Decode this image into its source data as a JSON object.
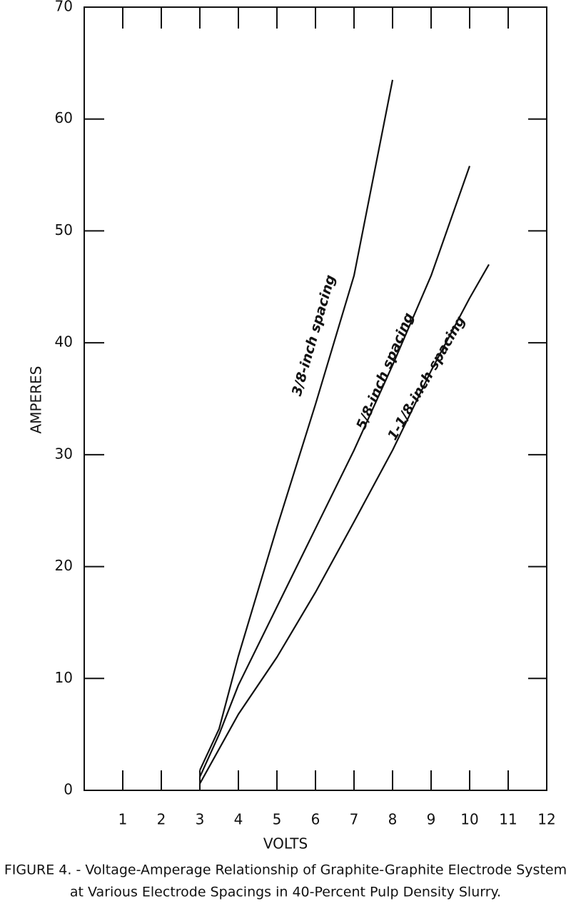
{
  "chart_data": {
    "type": "line",
    "xlabel": "VOLTS",
    "ylabel": "AMPERES",
    "caption": [
      "FIGURE 4. - Voltage-Amperage Relationship of Graphite-Graphite Electrode System",
      "at Various Electrode Spacings in 40-Percent Pulp Density Slurry."
    ],
    "xlim": [
      0,
      12
    ],
    "ylim": [
      0,
      70
    ],
    "xticks": [
      1,
      2,
      3,
      4,
      5,
      6,
      7,
      8,
      9,
      10,
      11,
      12
    ],
    "yticks": [
      0,
      10,
      20,
      30,
      40,
      50,
      60,
      70
    ],
    "series": [
      {
        "name": "3/8-inch spacing",
        "color": "#111111",
        "x": [
          3,
          3.5,
          4,
          5,
          6,
          7,
          8
        ],
        "values": [
          1.8,
          5.5,
          12,
          23.5,
          34.5,
          46,
          63.5
        ]
      },
      {
        "name": "5/8-inch spacing",
        "color": "#111111",
        "x": [
          3,
          3.5,
          4,
          5,
          6,
          7,
          8,
          9,
          10
        ],
        "values": [
          1.2,
          5,
          9.4,
          16.4,
          23.4,
          30.4,
          38,
          46,
          55.8
        ]
      },
      {
        "name": "1-1/8-inch spacing",
        "color": "#111111",
        "x": [
          3,
          4,
          5,
          6,
          7,
          8,
          9,
          10,
          10.5
        ],
        "values": [
          0.6,
          6.8,
          11.9,
          17.7,
          24,
          30.4,
          37.5,
          44,
          47
        ]
      }
    ]
  }
}
